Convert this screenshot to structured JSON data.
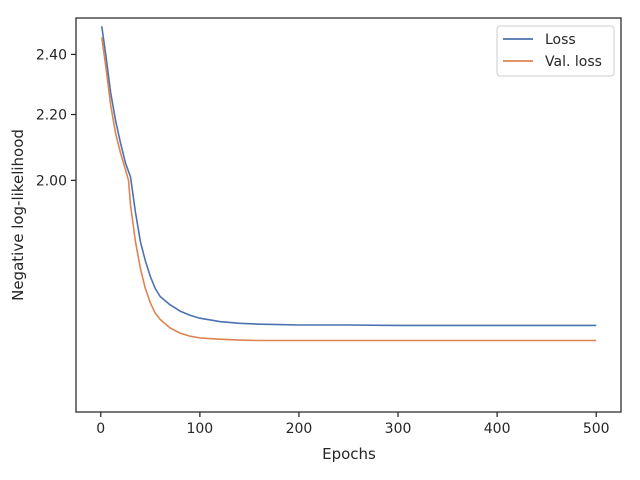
{
  "chart_data": {
    "type": "line",
    "title": "",
    "xlabel": "Epochs",
    "ylabel": "Negative log-likelihood",
    "scale": "log",
    "xlim": [
      -25,
      525
    ],
    "ylim": [
      1.43,
      2.53
    ],
    "xticks": [
      0,
      100,
      200,
      300,
      400,
      500
    ],
    "xtick_labels": [
      "0",
      "100",
      "200",
      "300",
      "400",
      "500"
    ],
    "yticks": [
      2.0,
      2.2,
      2.4
    ],
    "ytick_labels": [
      "2.00",
      "2.20",
      "2.40"
    ],
    "grid": false,
    "legend": "top-right",
    "series": [
      {
        "name": "Loss",
        "color": "#4c72b0",
        "x": [
          1,
          5,
          10,
          15,
          20,
          25,
          30,
          35,
          40,
          45,
          50,
          55,
          60,
          70,
          80,
          90,
          100,
          120,
          140,
          160,
          180,
          200,
          250,
          300,
          350,
          400,
          450,
          500
        ],
        "y": [
          2.5,
          2.4,
          2.27,
          2.18,
          2.11,
          2.05,
          2.01,
          1.91,
          1.83,
          1.78,
          1.74,
          1.71,
          1.69,
          1.67,
          1.655,
          1.645,
          1.638,
          1.63,
          1.626,
          1.624,
          1.623,
          1.622,
          1.622,
          1.621,
          1.621,
          1.621,
          1.621,
          1.621
        ]
      },
      {
        "name": "Val. loss",
        "color": "#dd8452",
        "x": [
          1,
          5,
          10,
          15,
          20,
          25,
          28,
          30,
          35,
          40,
          45,
          50,
          55,
          60,
          70,
          80,
          90,
          100,
          120,
          140,
          160,
          180,
          200,
          250,
          300,
          350,
          400,
          450,
          500
        ],
        "y": [
          2.46,
          2.36,
          2.23,
          2.14,
          2.08,
          2.03,
          2.0,
          1.93,
          1.83,
          1.76,
          1.71,
          1.675,
          1.65,
          1.635,
          1.615,
          1.603,
          1.596,
          1.592,
          1.589,
          1.587,
          1.586,
          1.586,
          1.586,
          1.586,
          1.586,
          1.586,
          1.586,
          1.586,
          1.586
        ]
      }
    ]
  }
}
